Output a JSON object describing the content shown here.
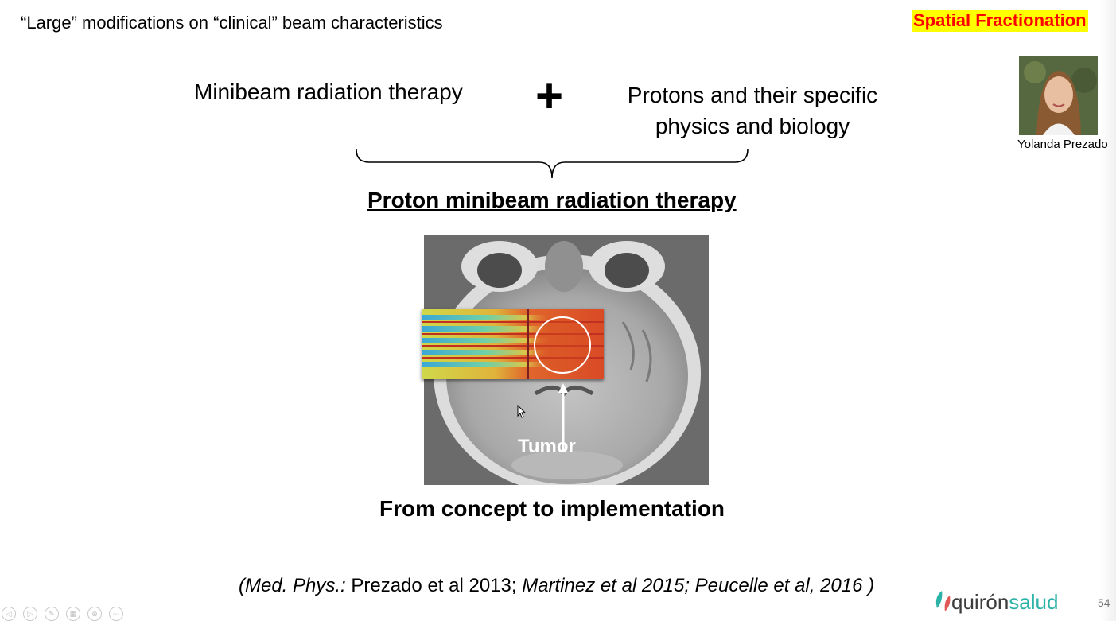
{
  "slide": {
    "header": "“Large” modifications on “clinical” beam characteristics",
    "tag": "Spatial Fractionation",
    "left_concept": "Minibeam radiation therapy",
    "plus": "+",
    "right_concept_line1": "Protons and their specific",
    "right_concept_line2": "physics and biology",
    "main_title": "Proton minibeam radiation therapy",
    "tumor_label": "Tumor",
    "subtitle": "From concept to implementation",
    "citation": {
      "journal": "(Med. Phys.:",
      "ref1": " Prezado et al 2013; ",
      "ref2": "Martinez et al 2015; Peucelle et al, 2016 )"
    },
    "presenter": "Yolanda Prezado",
    "page_number": "54"
  },
  "logo": {
    "part1": "quirón",
    "part2": "salud"
  },
  "colors": {
    "tag_bg": "#ffff00",
    "tag_fg": "#ff0000",
    "logo_accent": "#2bb3a7"
  }
}
